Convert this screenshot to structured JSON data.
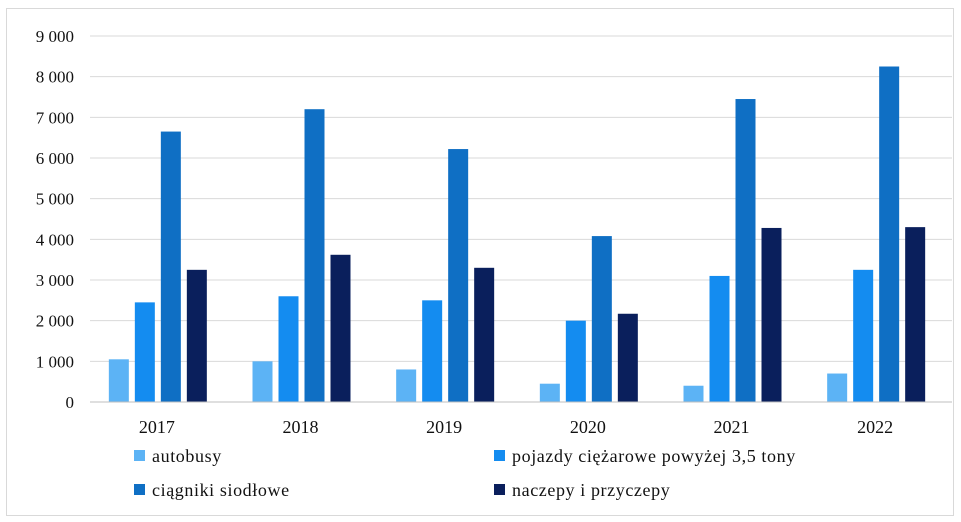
{
  "chart_data": {
    "type": "bar",
    "title": "",
    "xlabel": "",
    "ylabel": "",
    "ylim": [
      0,
      9000
    ],
    "yticks": [
      "0",
      "1 000",
      "2 000",
      "3 000",
      "4 000",
      "5 000",
      "6 000",
      "7 000",
      "8 000",
      "9 000"
    ],
    "grid": true,
    "legend_position": "bottom",
    "categories": [
      "2017",
      "2018",
      "2019",
      "2020",
      "2021",
      "2022"
    ],
    "series": [
      {
        "name": "autobusy",
        "color": "#5cb3f5",
        "values": [
          1050,
          1000,
          800,
          450,
          400,
          700
        ]
      },
      {
        "name": "pojazdy ciężarowe powyżej 3,5 tony",
        "color": "#148cf0",
        "values": [
          2450,
          2600,
          2500,
          2000,
          3100,
          3250
        ]
      },
      {
        "name": "ciągniki siodłowe",
        "color": "#0f6fc4",
        "values": [
          6650,
          7200,
          6220,
          4080,
          7450,
          8250
        ]
      },
      {
        "name": "naczepy i przyczepy",
        "color": "#0a1f5c",
        "values": [
          3250,
          3620,
          3300,
          2170,
          4280,
          4300
        ]
      }
    ]
  }
}
